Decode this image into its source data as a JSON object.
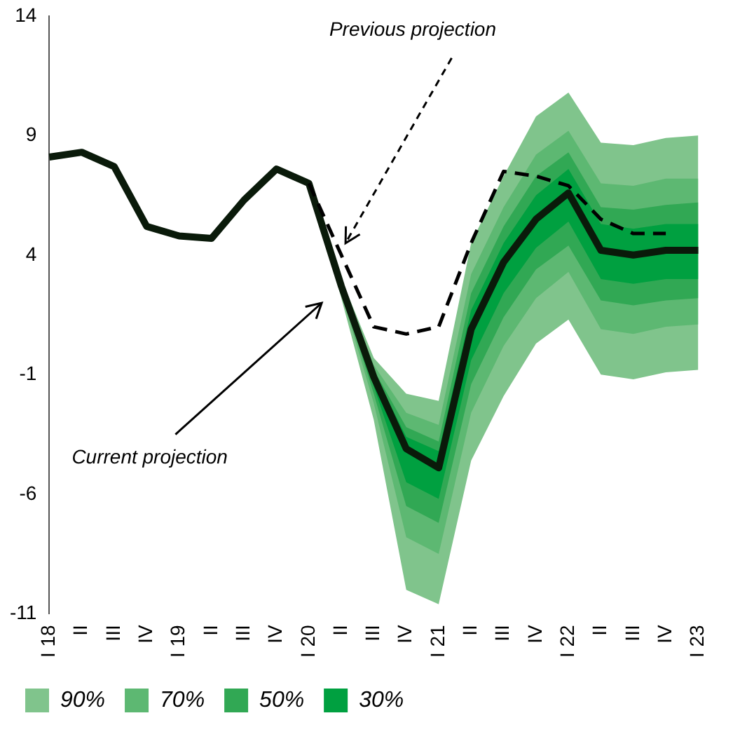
{
  "chart_data": {
    "type": "line",
    "categories": [
      "I 18",
      "II",
      "III",
      "IV",
      "I 19",
      "II",
      "III",
      "IV",
      "I 20",
      "II",
      "III",
      "IV",
      "I 21",
      "II",
      "III",
      "IV",
      "I 22",
      "II",
      "III",
      "IV",
      "I 23"
    ],
    "series": [
      {
        "name": "90%",
        "type": "line",
        "color": "#80c48c",
        "values": [
          null,
          null,
          null,
          null,
          null,
          null,
          null,
          null,
          null,
          null,
          null,
          null,
          null,
          null,
          null,
          null,
          null,
          null,
          null,
          null,
          null
        ],
        "lower": [
          null,
          null,
          null,
          null,
          null,
          null,
          null,
          null,
          7.0,
          2.2,
          -2.9,
          -10.0,
          -10.6,
          -4.6,
          -1.9,
          0.3,
          1.3,
          -1.0,
          -1.2,
          -0.9,
          -0.8
        ],
        "upper": [
          null,
          null,
          null,
          null,
          null,
          null,
          null,
          null,
          7.0,
          3.0,
          -0.3,
          -1.8,
          -2.1,
          4.5,
          7.3,
          9.8,
          10.8,
          8.7,
          8.6,
          8.9,
          9.0
        ]
      },
      {
        "name": "70%",
        "type": "line",
        "color": "#5db872",
        "values": [
          null,
          null,
          null,
          null,
          null,
          null,
          null,
          null,
          null,
          null,
          null,
          null,
          null,
          null,
          null,
          null,
          null,
          null,
          null,
          null,
          null
        ],
        "lower": [
          null,
          null,
          null,
          null,
          null,
          null,
          null,
          null,
          7.0,
          2.4,
          -2.2,
          -7.8,
          -8.5,
          -2.6,
          0.2,
          2.2,
          3.3,
          0.9,
          0.7,
          1.0,
          1.1
        ],
        "upper": [
          null,
          null,
          null,
          null,
          null,
          null,
          null,
          null,
          7.0,
          2.9,
          -0.6,
          -2.6,
          -3.1,
          3.2,
          6.0,
          8.2,
          9.2,
          7.0,
          6.9,
          7.2,
          7.2
        ]
      },
      {
        "name": "50%",
        "type": "line",
        "color": "#31a854",
        "values": [
          null,
          null,
          null,
          null,
          null,
          null,
          null,
          null,
          null,
          null,
          null,
          null,
          null,
          null,
          null,
          null,
          null,
          null,
          null,
          null,
          null
        ],
        "lower": [
          null,
          null,
          null,
          null,
          null,
          null,
          null,
          null,
          7.0,
          2.5,
          -1.8,
          -6.5,
          -7.2,
          -1.4,
          1.4,
          3.4,
          4.4,
          2.1,
          1.9,
          2.1,
          2.2
        ],
        "upper": [
          null,
          null,
          null,
          null,
          null,
          null,
          null,
          null,
          7.0,
          2.8,
          -0.8,
          -3.2,
          -3.8,
          2.4,
          5.2,
          7.3,
          8.3,
          6.0,
          5.9,
          6.1,
          6.2
        ]
      },
      {
        "name": "30%",
        "type": "line",
        "color": "#00a040",
        "values": [
          null,
          null,
          null,
          null,
          null,
          null,
          null,
          null,
          null,
          null,
          null,
          null,
          null,
          null,
          null,
          null,
          null,
          null,
          null,
          null,
          null
        ],
        "lower": [
          null,
          null,
          null,
          null,
          null,
          null,
          null,
          null,
          7.0,
          2.6,
          -1.5,
          -5.5,
          -6.2,
          -0.4,
          2.4,
          4.3,
          5.4,
          3.0,
          2.8,
          3.0,
          3.0
        ],
        "upper": [
          null,
          null,
          null,
          null,
          null,
          null,
          null,
          null,
          7.0,
          2.8,
          -0.9,
          -3.6,
          -4.2,
          1.7,
          4.5,
          6.5,
          7.6,
          5.3,
          5.1,
          5.3,
          5.3
        ]
      },
      {
        "type": "line",
        "color": "#0a1a0a",
        "values": [
          8.1,
          8.3,
          7.7,
          5.2,
          4.8,
          4.7,
          6.3,
          7.6,
          7.0,
          2.7,
          -1.1,
          -4.1,
          -4.9,
          0.9,
          3.7,
          5.5,
          6.6,
          4.2,
          4.0,
          4.2,
          4.2
        ]
      },
      {
        "type": "line",
        "color": "#000000",
        "line_style": "dashed",
        "values": [
          null,
          null,
          null,
          null,
          null,
          null,
          null,
          null,
          7.0,
          4.0,
          1.0,
          0.7,
          1.0,
          4.5,
          7.5,
          7.3,
          6.9,
          5.5,
          4.9,
          4.9,
          null
        ]
      }
    ],
    "ylim": [
      -11,
      14
    ],
    "yticks": [
      -11,
      -6,
      -1,
      4,
      9,
      14
    ],
    "grid": false,
    "legend": "bottom left",
    "marker": "none",
    "annotations": [
      "Previous projection",
      "Current projection"
    ]
  }
}
